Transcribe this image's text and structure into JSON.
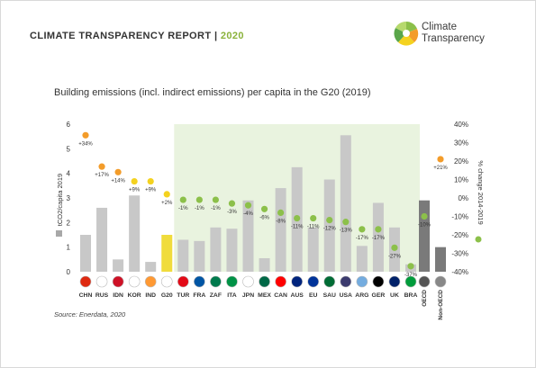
{
  "header": {
    "title": "CLIMATE TRANSPARENCY REPORT",
    "separator": " | ",
    "year": "2020"
  },
  "logo": {
    "line1": "Climate",
    "line2": "Transparency"
  },
  "subtitle": "Building emissions (incl. indirect emissions) per capita in the G20 (2019)",
  "source": "Source: Enerdata, 2020",
  "colors": {
    "bar_grey": "#c8c8c8",
    "bar_g20": "#f0dc3c",
    "bar_oecd": "#7a7a7a",
    "dot_orange": "#f39c2a",
    "dot_yellow": "#f4d21f",
    "dot_green": "#8cc04a",
    "highlight_bg": "#e9f3df",
    "header_accent": "#8ab23a"
  },
  "chart_data": {
    "type": "bar",
    "categories": [
      "CHN",
      "RUS",
      "IDN",
      "KOR",
      "IND",
      "G20",
      "TUR",
      "FRA",
      "ZAF",
      "ITA",
      "JPN",
      "MEX",
      "CAN",
      "AUS",
      "EU",
      "SAU",
      "USA",
      "ARG",
      "GER",
      "UK",
      "BRA",
      "OECD",
      "Non-OECD"
    ],
    "values": [
      1.5,
      2.6,
      0.5,
      3.1,
      0.4,
      1.5,
      1.3,
      1.25,
      1.8,
      1.75,
      2.9,
      0.55,
      3.4,
      4.25,
      1.8,
      3.75,
      5.55,
      1.05,
      2.8,
      1.8,
      0.3,
      2.9,
      1.0
    ],
    "change_pct": [
      34,
      17,
      14,
      9,
      9,
      2,
      -1,
      -1,
      -1,
      -3,
      -4,
      -6,
      -8,
      -11,
      -11,
      -12,
      -13,
      -17,
      -17,
      -27,
      -37,
      -10,
      21
    ],
    "change_labels": [
      "+34%",
      "+17%",
      "+14%",
      "+9%",
      "+9%",
      "+2%",
      "-1%",
      "-1%",
      "-1%",
      "-3%",
      "-4%",
      "-6%",
      "-8%",
      "-11%",
      "-11%",
      "-12%",
      "-13%",
      "-17%",
      "-17%",
      "-27%",
      "-37%",
      "-10%",
      "+21%"
    ],
    "ylabel": "tCO2/capita 2019",
    "y2label": "% change 2014-2019",
    "ylim": [
      0,
      6
    ],
    "yticks": [
      "0",
      "1",
      "2",
      "3",
      "4",
      "5",
      "6"
    ],
    "y2lim": [
      -40,
      40
    ],
    "y2ticks": [
      "-40%",
      "-30%",
      "-20%",
      "-10%",
      "0%",
      "10%",
      "20%",
      "30%",
      "40%"
    ],
    "grid": false,
    "highlight_range": [
      "TUR",
      "BRA"
    ]
  }
}
